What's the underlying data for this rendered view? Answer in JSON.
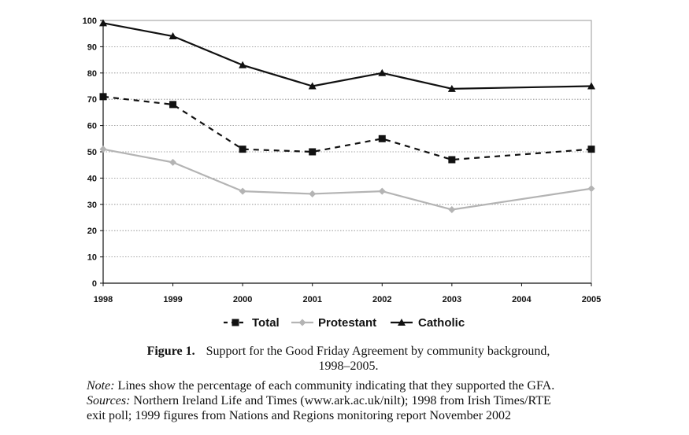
{
  "chart_data": {
    "type": "line",
    "x": [
      "1998",
      "1999",
      "2000",
      "2001",
      "2002",
      "2003",
      "2004",
      "2005"
    ],
    "x_values": [
      1998,
      1999,
      2000,
      2001,
      2002,
      2003,
      2004,
      2005
    ],
    "ylim": [
      0,
      100
    ],
    "yticks": [
      "0",
      "10",
      "20",
      "30",
      "40",
      "50",
      "60",
      "70",
      "80",
      "90",
      "100"
    ],
    "ytick_values": [
      0,
      10,
      20,
      30,
      40,
      50,
      60,
      70,
      80,
      90,
      100
    ],
    "grid": "horizontal dotted",
    "legend_position": "bottom",
    "series": [
      {
        "name": "Total",
        "style": "dashed",
        "marker": "square",
        "color": "#111111",
        "x": [
          1998,
          1999,
          2000,
          2001,
          2002,
          2003,
          2005
        ],
        "values": [
          71,
          68,
          51,
          50,
          55,
          47,
          51
        ]
      },
      {
        "name": "Protestant",
        "style": "solid",
        "marker": "diamond",
        "color": "#b4b4b4",
        "x": [
          1998,
          1999,
          2000,
          2001,
          2002,
          2003,
          2005
        ],
        "values": [
          51,
          46,
          35,
          34,
          35,
          28,
          36
        ]
      },
      {
        "name": "Catholic",
        "style": "solid",
        "marker": "triangle",
        "color": "#111111",
        "x": [
          1998,
          1999,
          2000,
          2001,
          2002,
          2003,
          2005
        ],
        "values": [
          99,
          94,
          83,
          75,
          80,
          74,
          75
        ]
      }
    ]
  },
  "caption": {
    "figure_label": "Figure 1.",
    "title_line1": "Support for the Good Friday Agreement by community background,",
    "title_line2": "1998–2005.",
    "note_label": "Note:",
    "note_text": " Lines show the percentage of each community indicating that they supported the GFA.",
    "sources_label": "Sources:",
    "sources_line1": " Northern Ireland Life and Times (www.ark.ac.uk/nilt); 1998 from Irish Times/RTE",
    "sources_line2": "exit poll; 1999 figures from Nations and Regions monitoring report November 2002"
  }
}
